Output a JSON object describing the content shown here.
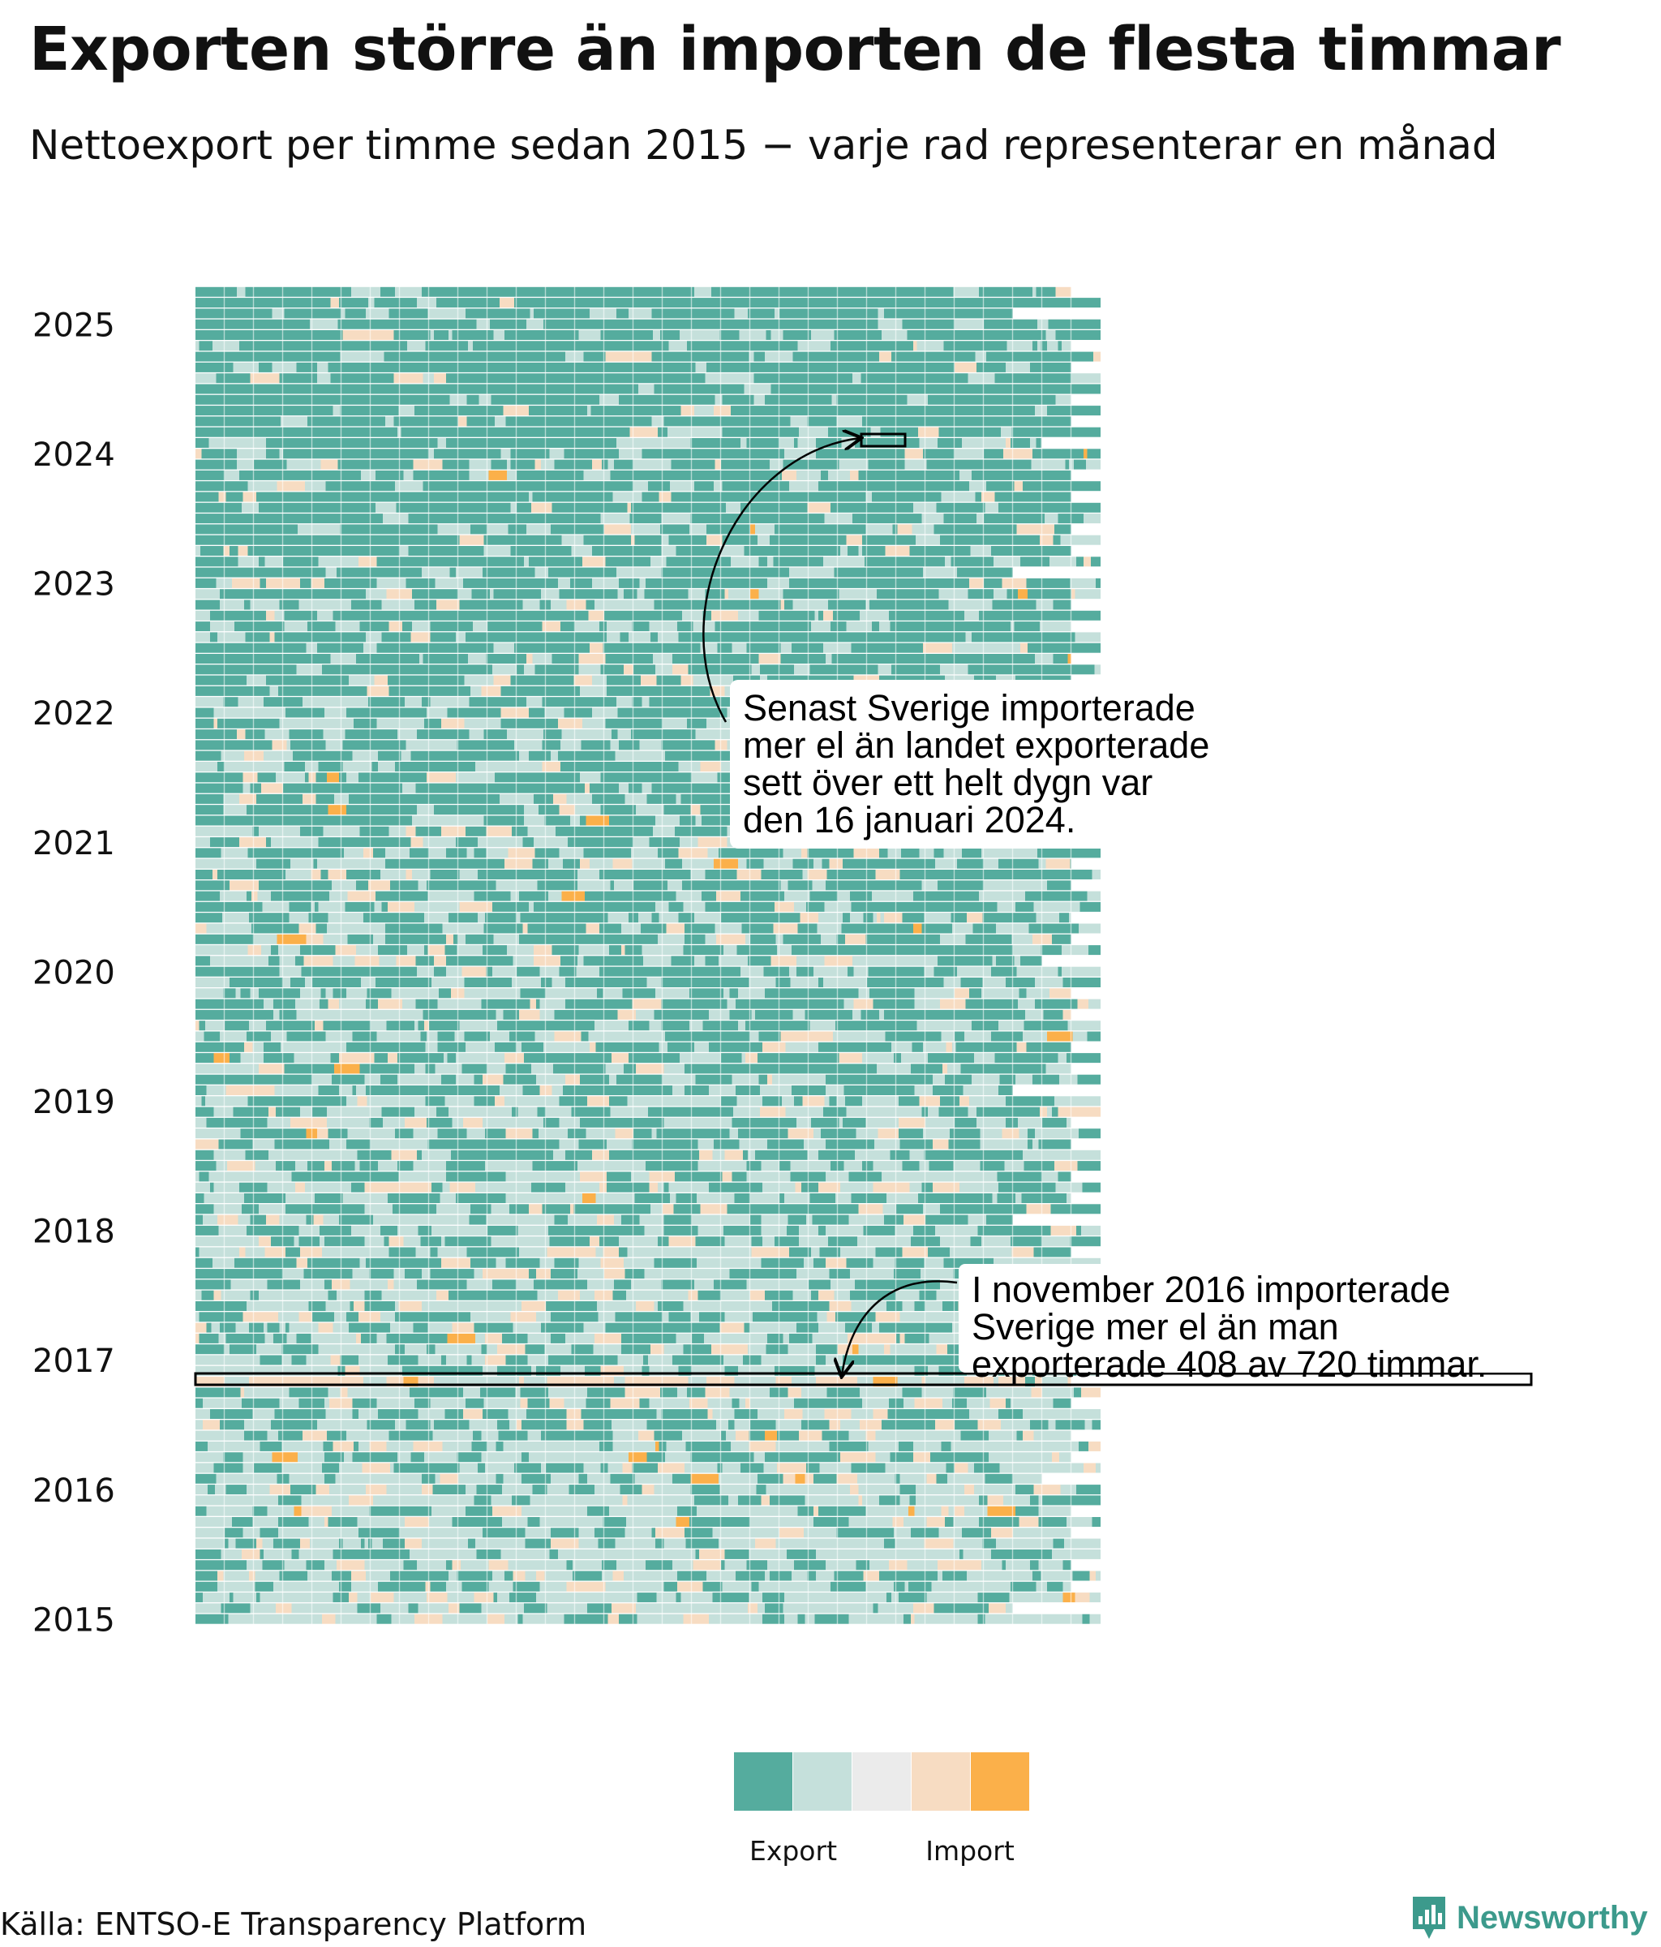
{
  "title": "Exporten större än importen de flesta timmar",
  "subtitle": "Nettoexport per timme sedan 2015 − varje rad representerar en månad",
  "source": "Källa: ENTSO-E Transparency Platform",
  "brand": {
    "name": "Newsworthy",
    "logo_icon": "bar-chart-speech-bubble-icon",
    "color": "#3c9a8c"
  },
  "chart_data": {
    "type": "heatmap",
    "x_dimension": "hour of month",
    "y_dimension": "month",
    "first_month": "2015-01",
    "last_month": "2025-04",
    "row_count": 124,
    "y_ticks": [
      "2015",
      "2016",
      "2017",
      "2018",
      "2019",
      "2020",
      "2021",
      "2022",
      "2023",
      "2024",
      "2025"
    ],
    "legend": {
      "labels": [
        "Export",
        "Import"
      ],
      "colors": [
        "#55ac9e",
        "#c5e0db",
        "#ebebeb",
        "#f7dcc2",
        "#fbb04a"
      ]
    },
    "highlights": [
      {
        "month": "2016-11",
        "import_hours": 408,
        "total_hours": 720
      },
      {
        "date": "2024-01-16"
      }
    ],
    "annotations": [
      {
        "target": "2024-01-16",
        "lines": [
          "Senast Sverige importerade",
          "mer el än landet exporterade",
          "sett över ett helt dygn var",
          "den 16 januari 2024."
        ]
      },
      {
        "target": "2016-11",
        "lines": [
          "I november 2016 importerade",
          "Sverige mer el än man",
          "exporterade 408 av 720 timmar."
        ]
      }
    ]
  }
}
